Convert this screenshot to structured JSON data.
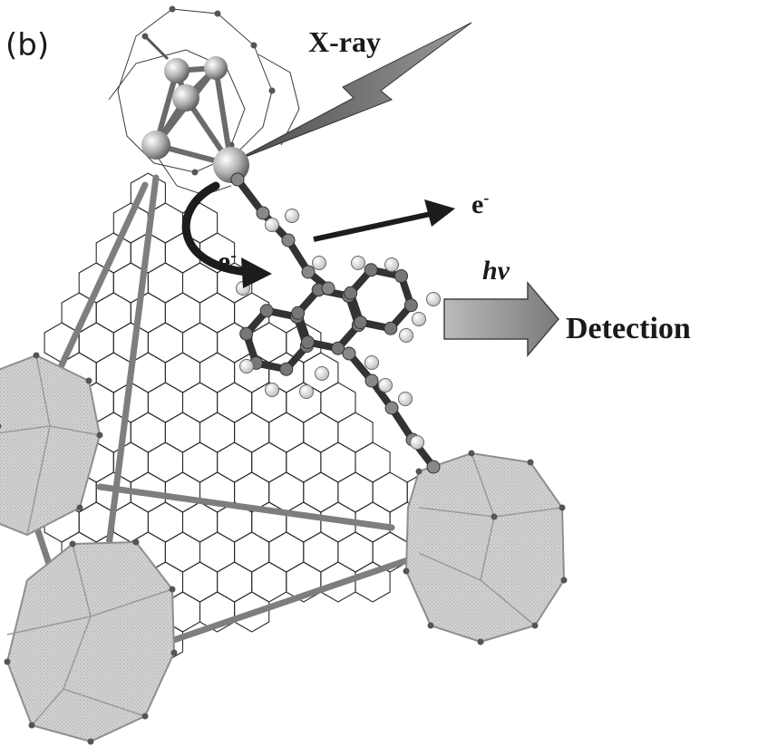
{
  "figure": {
    "panel_label": "(b)",
    "xray_label": "X-ray",
    "electron_out_label": "e",
    "electron_in_label": "e",
    "electron_sign": "-",
    "photon_label": "hν",
    "detection_label": "Detection"
  },
  "colors": {
    "framework_line": "#2b2b2b",
    "cluster_fill": "#c9c9c9",
    "cluster_edge": "#8e8e8e",
    "arrow_dark": "#1c1c1c",
    "arrow_gray": "#8a8a8a",
    "atom_fill": "#bdbdbd",
    "hydrogen_fill": "#e6e6e6",
    "strut_fill": "#9a9a9a"
  },
  "icons": {
    "metal_cluster": "hafnium-oxo-cluster-icon",
    "xray_beam": "lightning-bolt-icon",
    "electron_arrow": "straight-arrow-icon",
    "transfer_arrow": "curved-arrow-icon",
    "emission_arrow": "block-arrow-icon"
  }
}
